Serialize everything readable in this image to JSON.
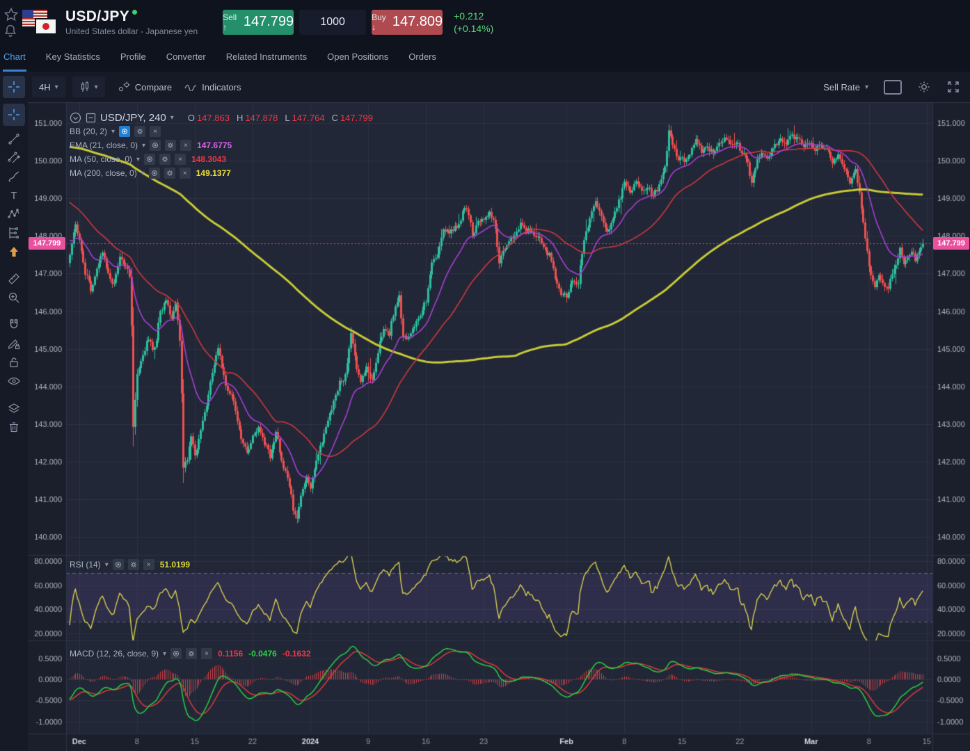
{
  "header": {
    "symbol": "USD/JPY",
    "subtitle": "United States dollar - Japanese yen",
    "status_dot_color": "#3ad174",
    "sell_label": "Sell",
    "sell_arrow": "↑",
    "sell_price": "147.799",
    "quantity": "1000",
    "buy_label": "Buy",
    "buy_arrow": "↓",
    "buy_price": "147.809",
    "change": "+0.212",
    "change_pct": "(+0.14%)",
    "change_color": "#5bd97a"
  },
  "tabs": {
    "items": [
      {
        "label": "Chart",
        "active": true
      },
      {
        "label": "Key Statistics",
        "active": false
      },
      {
        "label": "Profile",
        "active": false
      },
      {
        "label": "Converter",
        "active": false
      },
      {
        "label": "Related Instruments",
        "active": false
      },
      {
        "label": "Open Positions",
        "active": false
      },
      {
        "label": "Orders",
        "active": false
      }
    ]
  },
  "chart_toolbar": {
    "interval": "4H",
    "compare_label": "Compare",
    "indicators_label": "Indicators",
    "sell_rate_label": "Sell Rate"
  },
  "left_toolbar": {
    "items": [
      "crosshair",
      "trend-line",
      "parallel-channel",
      "brush",
      "text",
      "xabcd-pattern",
      "forecast",
      "arrow-up",
      "ruler",
      "zoom-in",
      "magnet",
      "draw-lock",
      "lock",
      "eye",
      "layers",
      "trash"
    ],
    "active_item": "crosshair"
  },
  "legend": {
    "symbol_title": "USD/JPY, 240",
    "ohlc": {
      "o_label": "O",
      "o": "147.863",
      "h_label": "H",
      "h": "147.878",
      "l_label": "L",
      "l": "147.764",
      "c_label": "C",
      "c": "147.799"
    },
    "indicators": [
      {
        "name": "BB (20, 2)",
        "value": "",
        "value_color": ""
      },
      {
        "name": "EMA (21, close, 0)",
        "value": "147.6775",
        "value_color": "#e05ef0"
      },
      {
        "name": "MA (50, close, 0)",
        "value": "148.3043",
        "value_color": "#f23645"
      },
      {
        "name": "MA (200, close, 0)",
        "value": "149.1377",
        "value_color": "#efe13a"
      }
    ]
  },
  "panes": {
    "rsi": {
      "name": "RSI (14)",
      "value": "51.0199",
      "value_color": "#d9d23e"
    },
    "macd": {
      "name": "MACD (12, 26, close, 9)",
      "v1": "0.1156",
      "v1_color": "#f23645",
      "v2": "-0.0476",
      "v2_color": "#2bd245",
      "v3": "-0.1632",
      "v3_color": "#f23645"
    }
  },
  "price_tag": {
    "value": "147.799",
    "color": "#e9519f"
  },
  "axes": {
    "price_ticks": [
      "151.000",
      "150.000",
      "149.000",
      "148.000",
      "147.000",
      "146.000",
      "145.000",
      "144.000",
      "143.000",
      "142.000",
      "141.000",
      "140.000"
    ],
    "price_range": [
      140,
      151
    ],
    "rsi_ticks": [
      "80.0000",
      "60.0000",
      "40.0000",
      "20.0000"
    ],
    "macd_ticks": [
      "0.5000",
      "0.0000",
      "-0.5000",
      "-1.0000"
    ],
    "time_ticks": [
      {
        "label": "Dec",
        "idx": 5,
        "major": true
      },
      {
        "label": "8",
        "idx": 35,
        "major": false
      },
      {
        "label": "15",
        "idx": 65,
        "major": false
      },
      {
        "label": "22",
        "idx": 95,
        "major": false
      },
      {
        "label": "2024",
        "idx": 125,
        "major": true
      },
      {
        "label": "9",
        "idx": 155,
        "major": false
      },
      {
        "label": "16",
        "idx": 185,
        "major": false
      },
      {
        "label": "23",
        "idx": 215,
        "major": false
      },
      {
        "label": "Feb",
        "idx": 258,
        "major": true
      },
      {
        "label": "8",
        "idx": 288,
        "major": false
      },
      {
        "label": "15",
        "idx": 318,
        "major": false
      },
      {
        "label": "22",
        "idx": 348,
        "major": false
      },
      {
        "label": "Mar",
        "idx": 385,
        "major": true
      },
      {
        "label": "8",
        "idx": 415,
        "major": false
      },
      {
        "label": "15",
        "idx": 445,
        "major": false
      }
    ]
  },
  "chart_data": {
    "type": "candlestick",
    "symbol": "USD/JPY",
    "interval": "240",
    "current": {
      "open": 147.863,
      "high": 147.878,
      "low": 147.764,
      "close": 147.799
    },
    "last_close": 147.799,
    "visible_candles": 444,
    "lead_candles": 220,
    "path_anchors": [
      [
        -220,
        148.2
      ],
      [
        -195,
        149.7
      ],
      [
        -170,
        150.9
      ],
      [
        -150,
        151.5
      ],
      [
        -130,
        151.7
      ],
      [
        -110,
        151.2
      ],
      [
        -90,
        150.4
      ],
      [
        -70,
        150.7
      ],
      [
        -55,
        150.5
      ],
      [
        -45,
        150.1
      ],
      [
        -35,
        149.8
      ],
      [
        -25,
        149.1
      ],
      [
        -15,
        148.3
      ],
      [
        -8,
        147.6
      ],
      [
        -1,
        147.3
      ],
      [
        0,
        147.4
      ],
      [
        3,
        148.35
      ],
      [
        5,
        147.9
      ],
      [
        8,
        147.0
      ],
      [
        11,
        146.6
      ],
      [
        14,
        147.2
      ],
      [
        17,
        147.5
      ],
      [
        20,
        147.0
      ],
      [
        23,
        146.7
      ],
      [
        26,
        147.4
      ],
      [
        29,
        147.2
      ],
      [
        31,
        146.9
      ],
      [
        32,
        145.5
      ],
      [
        33,
        142.9
      ],
      [
        35,
        144.3
      ],
      [
        38,
        144.8
      ],
      [
        41,
        145.3
      ],
      [
        44,
        145.0
      ],
      [
        47,
        145.9
      ],
      [
        50,
        146.4
      ],
      [
        53,
        145.8
      ],
      [
        55,
        146.2
      ],
      [
        57,
        145.2
      ],
      [
        58,
        143.8
      ],
      [
        59,
        141.9
      ],
      [
        61,
        142.0
      ],
      [
        63,
        142.7
      ],
      [
        65,
        142.2
      ],
      [
        68,
        142.9
      ],
      [
        71,
        143.5
      ],
      [
        74,
        144.4
      ],
      [
        77,
        144.9
      ],
      [
        80,
        144.3
      ],
      [
        83,
        143.8
      ],
      [
        86,
        143.4
      ],
      [
        89,
        142.6
      ],
      [
        92,
        142.2
      ],
      [
        95,
        142.7
      ],
      [
        98,
        142.9
      ],
      [
        101,
        142.5
      ],
      [
        104,
        142.2
      ],
      [
        107,
        142.7
      ],
      [
        110,
        142.1
      ],
      [
        113,
        141.6
      ],
      [
        116,
        140.7
      ],
      [
        118,
        140.45
      ],
      [
        120,
        141.1
      ],
      [
        123,
        141.5
      ],
      [
        125,
        141.3
      ],
      [
        128,
        142.1
      ],
      [
        131,
        142.4
      ],
      [
        134,
        143.2
      ],
      [
        137,
        143.5
      ],
      [
        140,
        144.1
      ],
      [
        143,
        144.3
      ],
      [
        146,
        145.4
      ],
      [
        148,
        144.8
      ],
      [
        151,
        144.1
      ],
      [
        154,
        144.5
      ],
      [
        157,
        144.2
      ],
      [
        160,
        144.9
      ],
      [
        163,
        145.5
      ],
      [
        166,
        145.4
      ],
      [
        169,
        146.1
      ],
      [
        171,
        146.45
      ],
      [
        173,
        145.4
      ],
      [
        176,
        145.2
      ],
      [
        179,
        145.7
      ],
      [
        182,
        145.9
      ],
      [
        185,
        146.3
      ],
      [
        188,
        147.3
      ],
      [
        191,
        147.5
      ],
      [
        194,
        148.3
      ],
      [
        197,
        148.1
      ],
      [
        200,
        148.2
      ],
      [
        203,
        148.5
      ],
      [
        206,
        148.75
      ],
      [
        209,
        148.1
      ],
      [
        212,
        148.3
      ],
      [
        215,
        148.4
      ],
      [
        218,
        148.65
      ],
      [
        221,
        148.2
      ],
      [
        223,
        147.2
      ],
      [
        225,
        147.7
      ],
      [
        228,
        147.8
      ],
      [
        231,
        148.0
      ],
      [
        234,
        148.3
      ],
      [
        237,
        148.1
      ],
      [
        240,
        148.2
      ],
      [
        243,
        147.9
      ],
      [
        246,
        147.7
      ],
      [
        249,
        147.5
      ],
      [
        252,
        146.9
      ],
      [
        255,
        146.5
      ],
      [
        258,
        146.35
      ],
      [
        261,
        146.9
      ],
      [
        264,
        146.8
      ],
      [
        267,
        147.9
      ],
      [
        270,
        148.5
      ],
      [
        273,
        148.85
      ],
      [
        276,
        148.5
      ],
      [
        279,
        148.1
      ],
      [
        282,
        148.5
      ],
      [
        285,
        148.95
      ],
      [
        288,
        149.35
      ],
      [
        291,
        149.2
      ],
      [
        294,
        149.45
      ],
      [
        297,
        149.15
      ],
      [
        300,
        149.35
      ],
      [
        303,
        149.05
      ],
      [
        306,
        149.3
      ],
      [
        309,
        149.9
      ],
      [
        311,
        150.75
      ],
      [
        313,
        150.45
      ],
      [
        316,
        150.1
      ],
      [
        319,
        149.95
      ],
      [
        322,
        150.25
      ],
      [
        325,
        150.55
      ],
      [
        328,
        150.25
      ],
      [
        331,
        150.45
      ],
      [
        334,
        150.15
      ],
      [
        337,
        150.5
      ],
      [
        340,
        150.65
      ],
      [
        343,
        150.35
      ],
      [
        346,
        150.55
      ],
      [
        349,
        150.2
      ],
      [
        352,
        149.95
      ],
      [
        354,
        149.5
      ],
      [
        357,
        149.95
      ],
      [
        360,
        150.25
      ],
      [
        363,
        150.05
      ],
      [
        366,
        150.35
      ],
      [
        369,
        150.65
      ],
      [
        372,
        150.45
      ],
      [
        375,
        150.7
      ],
      [
        378,
        150.55
      ],
      [
        381,
        150.35
      ],
      [
        384,
        150.55
      ],
      [
        387,
        150.25
      ],
      [
        390,
        150.5
      ],
      [
        393,
        150.35
      ],
      [
        396,
        149.95
      ],
      [
        399,
        150.25
      ],
      [
        402,
        149.75
      ],
      [
        405,
        149.45
      ],
      [
        408,
        149.75
      ],
      [
        410,
        149.1
      ],
      [
        412,
        148.3
      ],
      [
        414,
        147.6
      ],
      [
        416,
        147.0
      ],
      [
        418,
        146.65
      ],
      [
        420,
        146.95
      ],
      [
        422,
        146.75
      ],
      [
        425,
        146.55
      ],
      [
        427,
        147.05
      ],
      [
        429,
        147.35
      ],
      [
        431,
        147.65
      ],
      [
        433,
        147.15
      ],
      [
        435,
        147.45
      ],
      [
        437,
        147.7
      ],
      [
        439,
        147.35
      ],
      [
        441,
        147.6
      ],
      [
        443,
        147.78
      ]
    ],
    "overlays": [
      {
        "name": "EMA21",
        "period": 21,
        "color": "#a93ed6",
        "width": 1.6
      },
      {
        "name": "MA50",
        "period": 50,
        "color": "#d1373d",
        "width": 1.6
      },
      {
        "name": "MA200",
        "period": 200,
        "color": "#c9cb35",
        "width": 3
      }
    ],
    "rsi": {
      "period": 14,
      "color": "#d8d04f",
      "band": [
        30,
        70
      ],
      "band_fill": "rgba(126,87,194,0.14)",
      "band_line": "rgba(199,199,214,0.4)"
    },
    "macd": {
      "fast": 12,
      "slow": 26,
      "signal": 9,
      "macd_color": "#2ad043",
      "signal_color": "#e03a3a",
      "hist_color": "#cf4146"
    },
    "colors": {
      "up": "#2fbe9d",
      "down": "#f0504f",
      "grid": "rgba(255,255,255,0.05)",
      "plot_bg": "#212737",
      "axis_bg": "#1a1f2b",
      "border": "#2e3446",
      "price_line": "#f048a8"
    }
  }
}
